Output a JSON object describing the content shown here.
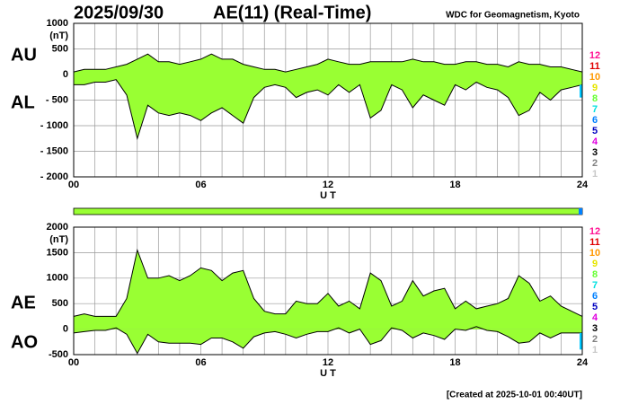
{
  "header": {
    "date": "2025/09/30",
    "title": "AE(11) (Real-Time)",
    "source": "WDC for Geomagnetism, Kyoto"
  },
  "footer": "[Created at 2025-10-01 00:40UT]",
  "station_legend": [
    {
      "label": "12",
      "color": "#ff1493"
    },
    {
      "label": "11",
      "color": "#e00000"
    },
    {
      "label": "10",
      "color": "#ff9900"
    },
    {
      "label": "9",
      "color": "#e6e600"
    },
    {
      "label": "8",
      "color": "#66ff33"
    },
    {
      "label": "7",
      "color": "#00e0e0"
    },
    {
      "label": "6",
      "color": "#0080ff"
    },
    {
      "label": "5",
      "color": "#0000c0"
    },
    {
      "label": "4",
      "color": "#e000e0"
    },
    {
      "label": "3",
      "color": "#000000"
    },
    {
      "label": "2",
      "color": "#808080"
    },
    {
      "label": "1",
      "color": "#c8c8c8"
    }
  ],
  "chart_data": [
    {
      "type": "area",
      "y_unit": "(nT)",
      "xlabel": "U T",
      "fill": "#99ff33",
      "grid": true,
      "xlim": [
        0,
        24
      ],
      "xticks": [
        {
          "value": 0,
          "label": "00"
        },
        {
          "value": 6,
          "label": "06"
        },
        12,
        18,
        24
      ],
      "ylim": [
        -2000,
        1000
      ],
      "yticks": [
        {
          "value": -2000,
          "label": "- 2000"
        },
        {
          "value": -1500,
          "label": "- 1500"
        },
        {
          "value": -1000,
          "label": "- 1000"
        },
        {
          "value": -500,
          "label": "- 500"
        },
        0,
        500,
        1000
      ],
      "x": [
        0,
        0.5,
        1,
        1.5,
        2,
        2.5,
        3,
        3.5,
        4,
        4.5,
        5,
        5.5,
        6,
        6.5,
        7,
        7.5,
        8,
        8.5,
        9,
        9.5,
        10,
        10.5,
        11,
        11.5,
        12,
        12.5,
        13,
        13.5,
        14,
        14.5,
        15,
        15.5,
        16,
        16.5,
        17,
        17.5,
        18,
        18.5,
        19,
        19.5,
        20,
        20.5,
        21,
        21.5,
        22,
        22.5,
        23,
        23.5,
        24
      ],
      "series": [
        {
          "name": "AU",
          "color": "#000000",
          "values": [
            50,
            100,
            100,
            100,
            150,
            200,
            300,
            400,
            250,
            250,
            200,
            250,
            300,
            400,
            300,
            300,
            200,
            150,
            100,
            100,
            50,
            100,
            150,
            200,
            300,
            250,
            200,
            200,
            250,
            250,
            250,
            250,
            300,
            250,
            250,
            200,
            200,
            250,
            250,
            200,
            200,
            150,
            250,
            200,
            200,
            150,
            150,
            100,
            50
          ]
        },
        {
          "name": "AL",
          "color": "#000000",
          "values": [
            -200,
            -200,
            -150,
            -150,
            -100,
            -400,
            -1250,
            -600,
            -750,
            -800,
            -750,
            -800,
            -900,
            -750,
            -650,
            -800,
            -950,
            -450,
            -250,
            -200,
            -250,
            -450,
            -350,
            -300,
            -400,
            -200,
            -350,
            -200,
            -850,
            -700,
            -200,
            -300,
            -650,
            -400,
            -500,
            -600,
            -200,
            -300,
            -150,
            -250,
            -300,
            -450,
            -800,
            -700,
            -350,
            -500,
            -300,
            -250,
            -200
          ]
        }
      ]
    },
    {
      "type": "area",
      "y_unit": "(nT)",
      "xlabel": "U T",
      "fill": "#99ff33",
      "grid": true,
      "xlim": [
        0,
        24
      ],
      "xticks": [
        {
          "value": 0,
          "label": "00"
        },
        {
          "value": 6,
          "label": "06"
        },
        12,
        18,
        24
      ],
      "ylim": [
        -500,
        2000
      ],
      "yticks": [
        -500,
        0,
        500,
        1000,
        1500,
        2000
      ],
      "x": [
        0,
        0.5,
        1,
        1.5,
        2,
        2.5,
        3,
        3.5,
        4,
        4.5,
        5,
        5.5,
        6,
        6.5,
        7,
        7.5,
        8,
        8.5,
        9,
        9.5,
        10,
        10.5,
        11,
        11.5,
        12,
        12.5,
        13,
        13.5,
        14,
        14.5,
        15,
        15.5,
        16,
        16.5,
        17,
        17.5,
        18,
        18.5,
        19,
        19.5,
        20,
        20.5,
        21,
        21.5,
        22,
        22.5,
        23,
        23.5,
        24
      ],
      "series": [
        {
          "name": "AE",
          "color": "#000000",
          "values": [
            250,
            300,
            250,
            250,
            250,
            600,
            1550,
            1000,
            1000,
            1050,
            950,
            1050,
            1200,
            1150,
            950,
            1100,
            1150,
            600,
            350,
            300,
            300,
            550,
            500,
            500,
            700,
            450,
            550,
            400,
            1100,
            950,
            450,
            550,
            950,
            650,
            750,
            800,
            400,
            550,
            400,
            450,
            500,
            600,
            1050,
            900,
            550,
            650,
            450,
            350,
            250
          ]
        },
        {
          "name": "AO",
          "color": "#000000",
          "values": [
            -75,
            -50,
            -25,
            -25,
            25,
            -100,
            -475,
            -100,
            -250,
            -275,
            -275,
            -275,
            -300,
            -175,
            -175,
            -250,
            -375,
            -150,
            -75,
            -50,
            -100,
            -175,
            -100,
            -50,
            -50,
            25,
            -75,
            0,
            -300,
            -225,
            25,
            -25,
            -175,
            -75,
            -125,
            -200,
            0,
            -25,
            50,
            -25,
            -50,
            -150,
            -275,
            -250,
            -75,
            -175,
            -75,
            -75,
            -75
          ]
        }
      ]
    }
  ]
}
